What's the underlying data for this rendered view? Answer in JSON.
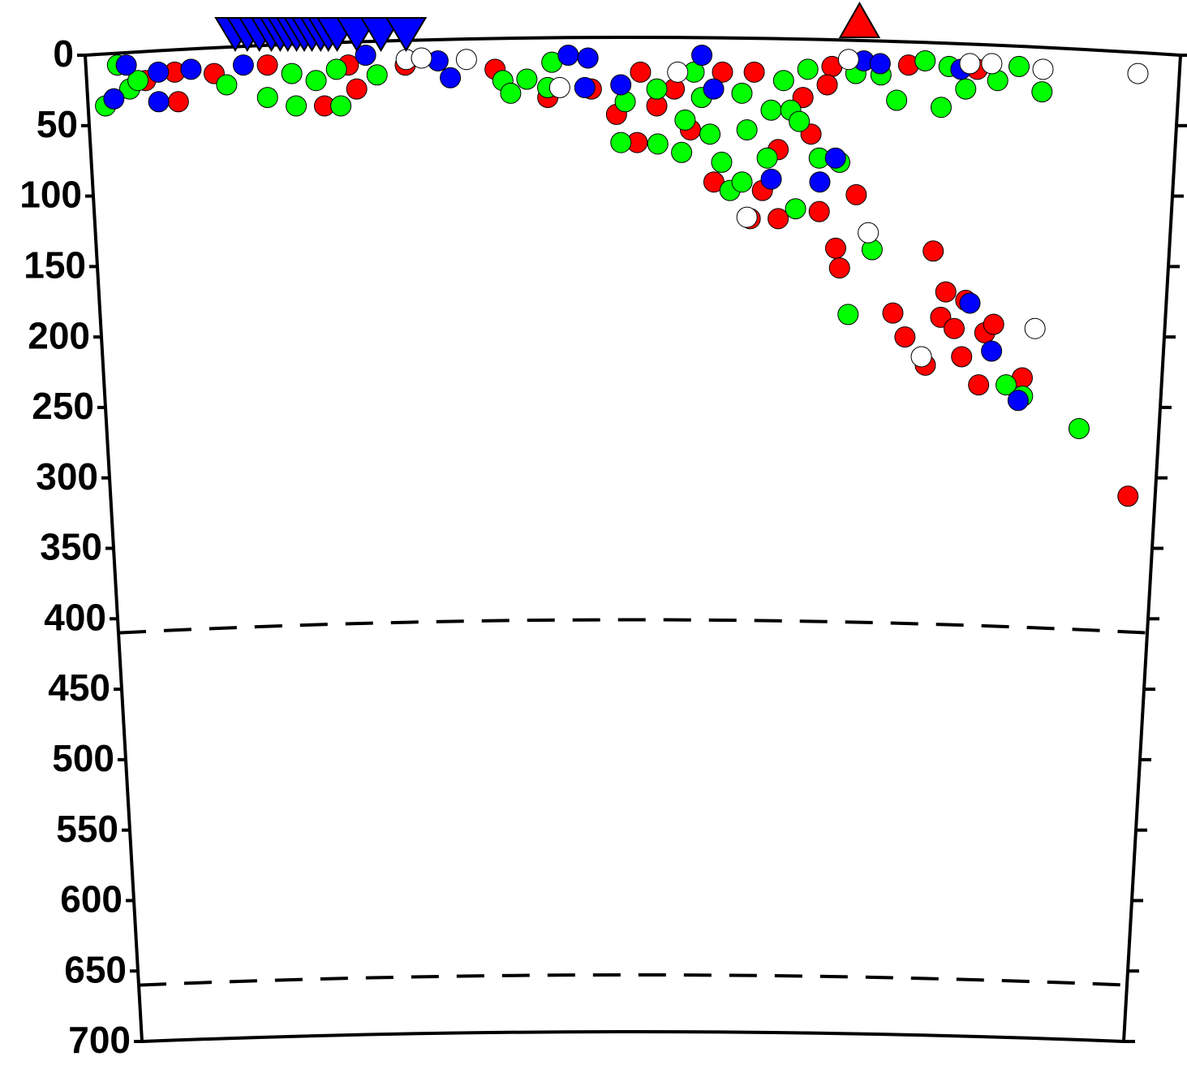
{
  "chart_data": {
    "type": "scatter",
    "xlim": [
      0,
      100
    ],
    "ylim": [
      0,
      700
    ],
    "yticks": [
      0,
      50,
      100,
      150,
      200,
      250,
      300,
      350,
      400,
      450,
      500,
      550,
      600,
      650,
      700
    ],
    "reference_depths": [
      410,
      660
    ],
    "series": [
      {
        "color": "#ff0000",
        "x": [
          8.1,
          5.4,
          8.3,
          11.7,
          29.2,
          37.4,
          42.2,
          46.2,
          48.5,
          50.7,
          52.2,
          53.8,
          50.4,
          55.3,
          58.2,
          61.1,
          57.5,
          62.0,
          63.5,
          60.9,
          67.3,
          68.9,
          69.3,
          70.7,
          68.2,
          67.8,
          78.0,
          74.4,
          75.6,
          77.6,
          79.3,
          78.9,
          80.2,
          81.2,
          81.0,
          83.1,
          83.9,
          82.7,
          86.8,
          97.4,
          81.5,
          65.6,
          66.4,
          75.2,
          63.4,
          16.6,
          24.0,
          24.7,
          21.7
        ],
        "values": [
          12,
          18,
          33,
          13,
          7,
          10,
          30,
          24,
          42,
          12,
          36,
          24,
          62,
          53,
          12,
          12,
          90,
          96,
          116,
          116,
          111,
          137,
          151,
          99,
          8,
          21,
          139,
          183,
          200,
          220,
          168,
          186,
          194,
          174,
          214,
          197,
          191,
          234,
          229,
          313,
          10,
          30,
          56,
          7,
          67,
          7,
          7,
          24,
          36
        ]
      },
      {
        "color": "#00ff00",
        "x": [
          1.6,
          2.9,
          3.9,
          4.7,
          12.8,
          16.5,
          19.1,
          18.8,
          21.0,
          23.2,
          22.9,
          26.6,
          38.1,
          38.8,
          40.3,
          42.2,
          42.6,
          49.3,
          48.9,
          52.2,
          52.3,
          54.5,
          54.8,
          55.6,
          56.3,
          57.1,
          58.2,
          59.0,
          60.1,
          60.5,
          60.0,
          62.7,
          64.5,
          65.3,
          63.8,
          66.0,
          67.2,
          69.1,
          70.4,
          65.1,
          72.3,
          70.2,
          74.2,
          78.3,
          78.9,
          80.5,
          83.4,
          85.3,
          87.5,
          85.3,
          86.9,
          92.4,
          76.7,
          72.7,
          62.4
        ],
        "values": [
          36,
          7,
          24,
          18,
          21,
          30,
          36,
          13,
          18,
          36,
          10,
          14,
          18,
          27,
          17,
          23,
          5,
          33,
          62,
          24,
          63,
          69,
          46,
          12,
          30,
          56,
          76,
          96,
          90,
          53,
          27,
          39,
          39,
          47,
          18,
          10,
          73,
          76,
          13,
          109,
          138,
          184,
          32,
          37,
          8,
          24,
          18,
          8,
          26,
          234,
          242,
          265,
          4,
          14,
          73
        ]
      },
      {
        "color": "#0000ff",
        "x": [
          3.7,
          6.6,
          9.6,
          6.5,
          2.4,
          14.4,
          25.6,
          32.2,
          33.3,
          44.1,
          45.9,
          45.6,
          48.9,
          56.3,
          57.4,
          62.8,
          67.3,
          68.7,
          71.1,
          81.6,
          83.8,
          86.5,
          72.6,
          80.0
        ],
        "values": [
          7,
          12,
          10,
          33,
          31,
          7,
          0,
          4,
          16,
          0,
          2,
          23,
          21,
          0,
          24,
          88,
          90,
          73,
          4,
          176,
          210,
          245,
          6,
          10
        ]
      },
      {
        "color": "#ffffff",
        "x": [
          29.3,
          34.8,
          54.1,
          43.3,
          60.6,
          69.7,
          71.9,
          80.8,
          82.8,
          87.5,
          87.8,
          77.2,
          96.2,
          30.7
        ],
        "values": [
          3,
          3,
          12,
          23,
          115,
          3,
          126,
          6,
          6,
          10,
          194,
          214,
          13,
          2
        ]
      }
    ],
    "markers": [
      {
        "color": "#0000ff",
        "shape": "triangle-down",
        "x": [
          13.7,
          14.8,
          15.9,
          17.0,
          17.8,
          18.5,
          19.3,
          20.0,
          20.7,
          21.5,
          22.2,
          23.0,
          24.8,
          27.0,
          29.3
        ]
      },
      {
        "color": "#ff0000",
        "shape": "triangle-up",
        "x": [
          70.7
        ]
      }
    ]
  }
}
